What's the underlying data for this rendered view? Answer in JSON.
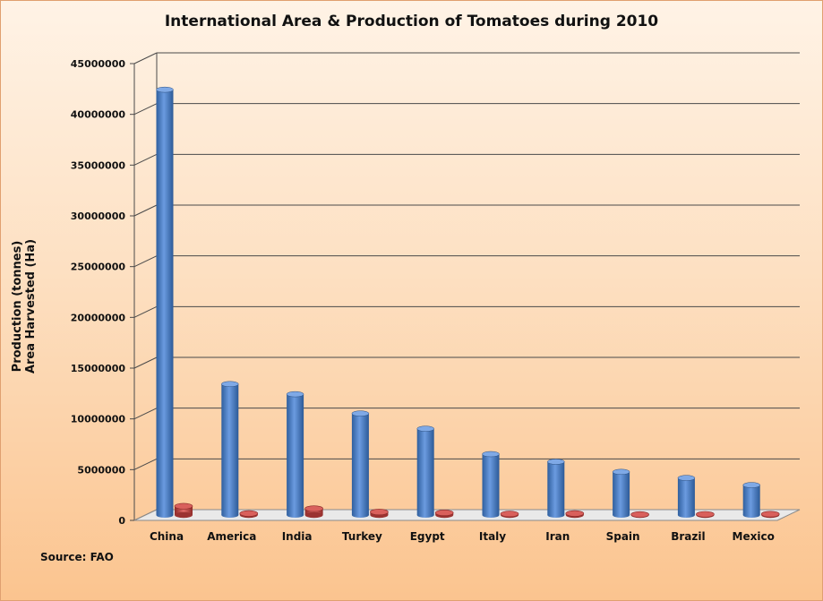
{
  "chart_data": {
    "type": "bar",
    "title": "International Area & Production of Tomatoes during 2010",
    "ylabel_line1": "Production (tonnes)",
    "ylabel_line2": "Area Harvested (Ha)",
    "source": "Source: FAO",
    "ylim": [
      0,
      45000000
    ],
    "yticks": [
      0,
      5000000,
      10000000,
      15000000,
      20000000,
      25000000,
      30000000,
      35000000,
      40000000,
      45000000
    ],
    "grid": true,
    "categories": [
      "China",
      "America",
      "India",
      "Turkey",
      "Egypt",
      "Italy",
      "Iran",
      "Spain",
      "Brazil",
      "Mexico"
    ],
    "series": [
      {
        "values": [
          41900000,
          12900000,
          11900000,
          10000000,
          8500000,
          6000000,
          5250000,
          4250000,
          3650000,
          2950000
        ]
      },
      {
        "values": [
          870000,
          150000,
          630000,
          300000,
          220000,
          110000,
          150000,
          50000,
          70000,
          90000
        ]
      }
    ],
    "colors": {
      "series1": "#4a7cc3",
      "series2": "#c0504d",
      "grid": "#4a4a4a"
    }
  }
}
